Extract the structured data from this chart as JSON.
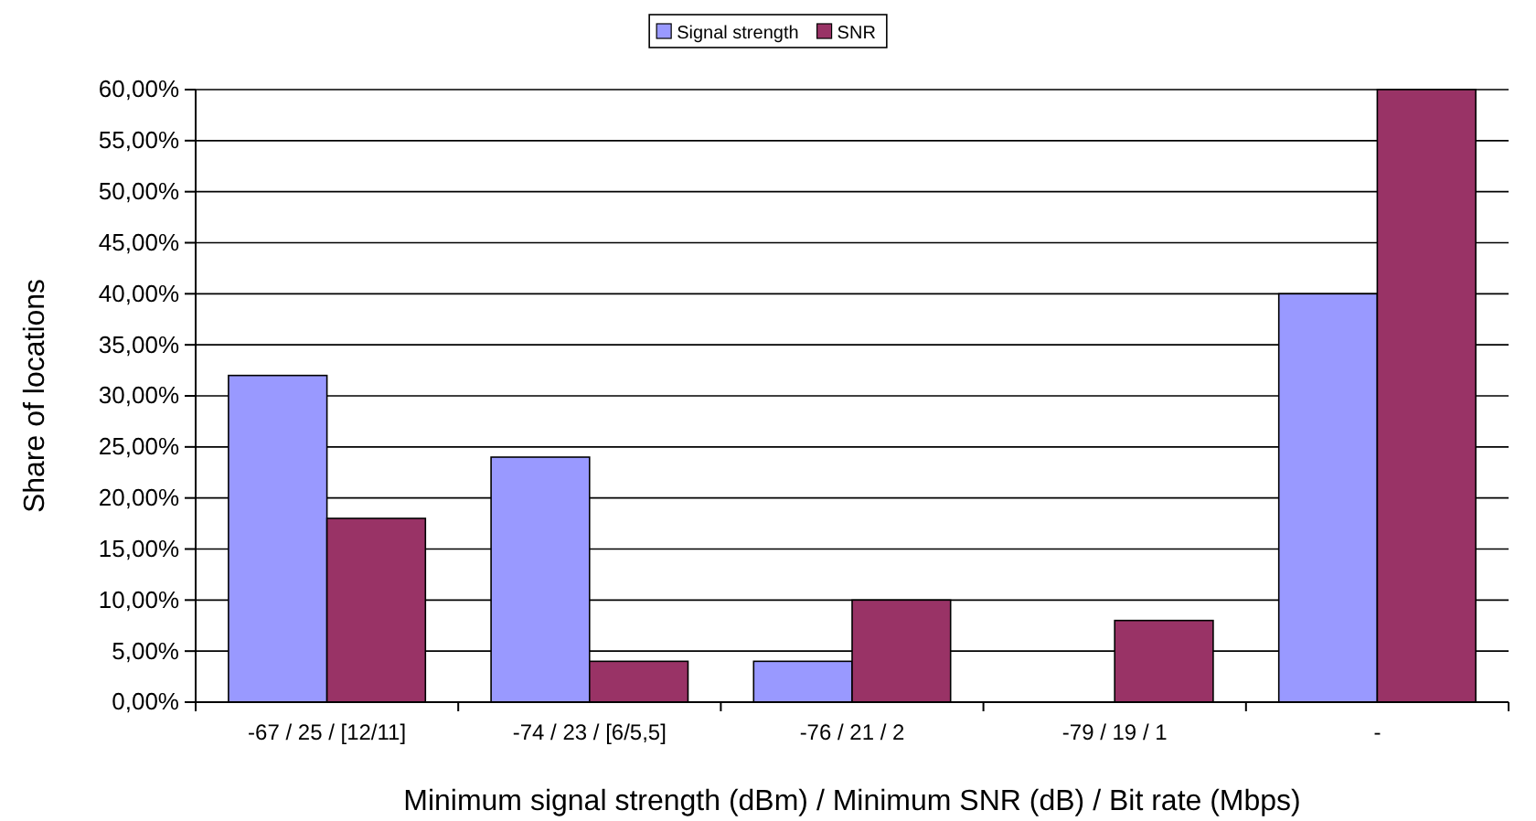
{
  "chart_data": {
    "type": "bar",
    "xlabel": "Minimum signal strength (dBm) / Minimum SNR (dB) / Bit rate (Mbps)",
    "ylabel": "Share of locations",
    "categories": [
      "-67 / 25 / [12/11]",
      "-74 / 23 / [6/5,5]",
      "-76 / 21 / 2",
      "-79 / 19 / 1",
      "-"
    ],
    "series": [
      {
        "name": "Signal strength",
        "color": "#9999ff",
        "values": [
          32,
          24,
          4,
          0,
          40
        ]
      },
      {
        "name": "SNR",
        "color": "#993366",
        "values": [
          18,
          4,
          10,
          8,
          60
        ]
      }
    ],
    "ylim": [
      0,
      60
    ],
    "yticks": [
      {
        "value": 0,
        "label": "0,00%"
      },
      {
        "value": 5,
        "label": "5,00%"
      },
      {
        "value": 10,
        "label": "10,00%"
      },
      {
        "value": 15,
        "label": "15,00%"
      },
      {
        "value": 20,
        "label": "20,00%"
      },
      {
        "value": 25,
        "label": "25,00%"
      },
      {
        "value": 30,
        "label": "30,00%"
      },
      {
        "value": 35,
        "label": "35,00%"
      },
      {
        "value": 40,
        "label": "40,00%"
      },
      {
        "value": 45,
        "label": "45,00%"
      },
      {
        "value": 50,
        "label": "50,00%"
      },
      {
        "value": 55,
        "label": "55,00%"
      },
      {
        "value": 60,
        "label": "60,00%"
      }
    ],
    "grid": "y",
    "legend": "top"
  }
}
